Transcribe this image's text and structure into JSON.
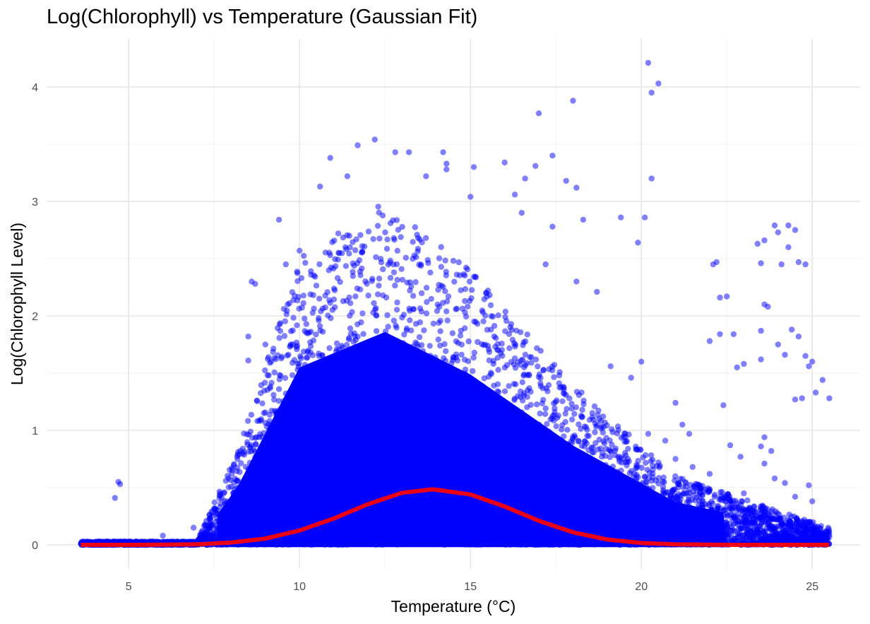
{
  "chart_data": {
    "type": "scatter",
    "title": "Log(Chlorophyll) vs Temperature (Gaussian Fit)",
    "xlabel": "Temperature (°C)",
    "ylabel": "Log(Chlorophyll Level)",
    "xlim": [
      2.6,
      26.4
    ],
    "ylim": [
      -0.21,
      4.42
    ],
    "xticks": [
      5,
      10,
      15,
      20,
      25
    ],
    "yticks": [
      0,
      1,
      2,
      3,
      4
    ],
    "grid": true,
    "legend": "none",
    "colors": {
      "points": "#0000ff",
      "fit": "#ff0000",
      "grid_major": "#e6e6e6",
      "grid_minor": "#f2f2f2"
    },
    "series": [
      {
        "kind": "scatter",
        "color": "#0000ff",
        "opacity": 0.5,
        "main_cloud": {
          "x_range": [
            3.6,
            25.5
          ],
          "peak_x": 12.5,
          "upper_edge_at_peak": 3.0
        },
        "points": [
          [
            4.7,
            0.55
          ],
          [
            4.75,
            0.53
          ],
          [
            4.6,
            0.41
          ],
          [
            3.8,
            0.02
          ],
          [
            5.0,
            0.03
          ],
          [
            6.0,
            0.08
          ],
          [
            6.9,
            0.15
          ],
          [
            8.6,
            2.3
          ],
          [
            8.7,
            2.28
          ],
          [
            9.4,
            2.84
          ],
          [
            9.0,
            1.75
          ],
          [
            8.5,
            1.61
          ],
          [
            8.5,
            1.82
          ],
          [
            9.6,
            2.45
          ],
          [
            10.0,
            2.57
          ],
          [
            10.6,
            3.13
          ],
          [
            10.9,
            3.38
          ],
          [
            11.4,
            3.22
          ],
          [
            11.7,
            3.49
          ],
          [
            12.2,
            3.54
          ],
          [
            12.8,
            3.43
          ],
          [
            13.2,
            3.43
          ],
          [
            13.7,
            3.22
          ],
          [
            14.2,
            3.43
          ],
          [
            14.3,
            3.33
          ],
          [
            14.3,
            3.28
          ],
          [
            15.1,
            3.3
          ],
          [
            15.0,
            3.04
          ],
          [
            16.0,
            3.34
          ],
          [
            16.3,
            3.06
          ],
          [
            16.6,
            3.2
          ],
          [
            16.9,
            3.31
          ],
          [
            17.0,
            3.77
          ],
          [
            17.4,
            3.4
          ],
          [
            17.8,
            3.18
          ],
          [
            18.0,
            3.88
          ],
          [
            18.1,
            3.12
          ],
          [
            20.2,
            4.21
          ],
          [
            20.5,
            4.03
          ],
          [
            20.3,
            3.95
          ],
          [
            20.3,
            3.2
          ],
          [
            20.1,
            2.86
          ],
          [
            19.9,
            2.64
          ],
          [
            19.4,
            2.86
          ],
          [
            18.3,
            2.84
          ],
          [
            17.4,
            2.78
          ],
          [
            16.5,
            2.9
          ],
          [
            17.2,
            2.45
          ],
          [
            18.1,
            2.3
          ],
          [
            18.7,
            2.21
          ],
          [
            19.1,
            1.56
          ],
          [
            19.7,
            1.46
          ],
          [
            20.0,
            1.6
          ],
          [
            20.2,
            0.97
          ],
          [
            20.7,
            0.91
          ],
          [
            21.0,
            1.24
          ],
          [
            21.2,
            1.05
          ],
          [
            21.4,
            0.97
          ],
          [
            21.7,
            0.52
          ],
          [
            22.2,
            2.47
          ],
          [
            22.1,
            2.45
          ],
          [
            22.3,
            2.16
          ],
          [
            22.5,
            2.17
          ],
          [
            22.0,
            1.78
          ],
          [
            22.3,
            1.84
          ],
          [
            22.7,
            1.84
          ],
          [
            22.8,
            1.55
          ],
          [
            22.4,
            1.22
          ],
          [
            22.6,
            0.87
          ],
          [
            22.9,
            0.77
          ],
          [
            23.6,
            0.94
          ],
          [
            23.5,
            0.86
          ],
          [
            23.8,
            0.82
          ],
          [
            23.6,
            0.71
          ],
          [
            23.9,
            0.58
          ],
          [
            23.4,
            2.63
          ],
          [
            23.6,
            2.66
          ],
          [
            23.9,
            2.79
          ],
          [
            23.5,
            2.46
          ],
          [
            24.0,
            2.73
          ],
          [
            24.1,
            2.45
          ],
          [
            24.3,
            2.79
          ],
          [
            24.5,
            2.75
          ],
          [
            24.6,
            2.47
          ],
          [
            24.8,
            2.45
          ],
          [
            24.3,
            2.6
          ],
          [
            23.6,
            2.1
          ],
          [
            23.7,
            2.08
          ],
          [
            23.5,
            1.87
          ],
          [
            24.0,
            1.75
          ],
          [
            24.2,
            1.66
          ],
          [
            24.4,
            1.88
          ],
          [
            24.6,
            1.82
          ],
          [
            24.8,
            1.65
          ],
          [
            25.0,
            1.6
          ],
          [
            25.1,
            1.33
          ],
          [
            25.3,
            1.44
          ],
          [
            25.5,
            1.28
          ],
          [
            24.9,
            1.56
          ],
          [
            24.7,
            1.28
          ],
          [
            24.5,
            1.27
          ],
          [
            24.2,
            0.54
          ],
          [
            24.5,
            0.42
          ],
          [
            24.9,
            0.52
          ],
          [
            25.0,
            0.38
          ],
          [
            25.5,
            0.09
          ],
          [
            25.5,
            0.07
          ],
          [
            23.0,
            1.58
          ],
          [
            23.5,
            1.62
          ],
          [
            21.5,
            0.68
          ],
          [
            22.0,
            0.62
          ],
          [
            23.0,
            0.45
          ],
          [
            23.3,
            0.33
          ],
          [
            24.0,
            0.22
          ],
          [
            24.8,
            0.11
          ],
          [
            23.2,
            0.18
          ],
          [
            22.5,
            0.27
          ],
          [
            21.0,
            0.75
          ],
          [
            20.5,
            0.72
          ],
          [
            19.5,
            0.56
          ],
          [
            20.8,
            0.4
          ],
          [
            21.8,
            0.33
          ]
        ]
      },
      {
        "kind": "line",
        "label": "Gaussian Fit",
        "color": "#ff0000",
        "x": [
          3.6,
          5,
          6,
          7,
          8,
          9,
          10,
          11,
          12,
          13,
          13.9,
          15,
          16,
          17,
          18,
          19,
          20,
          21,
          22,
          23,
          24,
          25,
          25.5
        ],
        "y": [
          0.0,
          0.0,
          0.001,
          0.005,
          0.02,
          0.055,
          0.125,
          0.23,
          0.355,
          0.455,
          0.485,
          0.44,
          0.335,
          0.21,
          0.11,
          0.047,
          0.016,
          0.004,
          0.001,
          0.0,
          0.0,
          0.0,
          0.0
        ]
      }
    ]
  }
}
